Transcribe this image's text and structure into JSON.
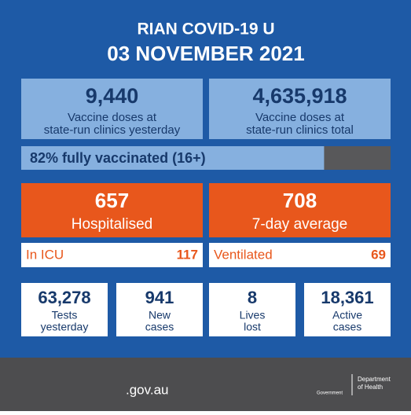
{
  "header": {
    "title": "RIAN COVID-19 U",
    "date": "03 NOVEMBER 2021"
  },
  "vaccines": [
    {
      "value": "9,440",
      "lines": [
        "Vaccine doses at",
        "state-run clinics yesterday"
      ]
    },
    {
      "value": "4,635,918",
      "lines": [
        "Vaccine doses at",
        "state-run clinics total"
      ]
    }
  ],
  "progress": {
    "value": 82,
    "label": "82% fully vaccinated (16+)"
  },
  "hospital": [
    {
      "value": "657",
      "label": "Hospitalised"
    },
    {
      "value": "708",
      "label": "7-day average"
    }
  ],
  "details": [
    {
      "label": "In ICU",
      "value": "117"
    },
    {
      "label": "Ventilated",
      "value": "69"
    }
  ],
  "stats": [
    {
      "value": "63,278",
      "lines": [
        "Tests",
        "yesterday"
      ]
    },
    {
      "value": "941",
      "lines": [
        "New",
        "cases"
      ]
    },
    {
      "value": "8",
      "lines": [
        "Lives",
        "lost"
      ]
    },
    {
      "value": "18,361",
      "lines": [
        "Active",
        "cases"
      ]
    }
  ],
  "footer": {
    "site": ".gov.au",
    "department": [
      "Department",
      "of Health"
    ],
    "government": "Government"
  }
}
